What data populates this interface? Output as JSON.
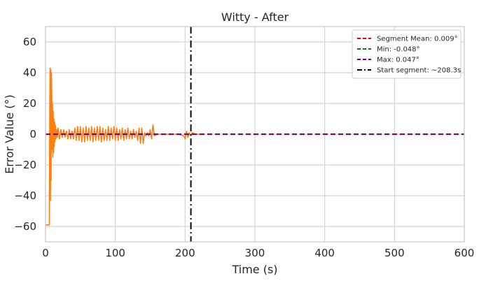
{
  "chart_data": {
    "type": "line",
    "title": "Witty - After",
    "xlabel": "Time (s)",
    "ylabel": "Error Value (°)",
    "xlim": [
      0,
      600
    ],
    "ylim": [
      -70,
      70
    ],
    "xticks": [
      0,
      100,
      200,
      300,
      400,
      500,
      600
    ],
    "yticks": [
      -60,
      -40,
      -20,
      0,
      20,
      40,
      60
    ],
    "grid": true,
    "legend_position": "top-right",
    "series": [
      {
        "color": "#ff7f0e",
        "x": [
          0,
          5,
          5.5,
          6,
          6.5,
          7,
          7.5,
          8,
          8.5,
          9,
          9.5,
          10,
          10.5,
          11,
          11.5,
          12,
          12.5,
          13,
          13.5,
          14,
          14.5,
          15,
          16,
          17,
          18,
          20,
          22,
          24,
          26,
          28,
          30,
          32,
          34,
          36,
          38,
          40,
          42,
          44,
          46,
          48,
          50,
          52,
          54,
          56,
          58,
          60,
          62,
          64,
          66,
          68,
          70,
          72,
          74,
          76,
          78,
          80,
          82,
          84,
          86,
          88,
          90,
          92,
          94,
          96,
          98,
          100,
          102,
          104,
          106,
          108,
          110,
          112,
          114,
          116,
          118,
          120,
          122,
          124,
          126,
          128,
          130,
          132,
          134,
          136,
          138,
          140,
          142,
          144,
          146,
          148,
          150,
          152,
          154,
          156,
          160,
          170,
          180,
          190,
          198,
          200,
          202,
          204,
          206,
          208,
          210,
          215,
          220,
          225
        ],
        "y": [
          -59,
          -59,
          -59,
          5,
          43,
          -43,
          42,
          -30,
          40,
          25,
          -10,
          20,
          -15,
          15,
          -12,
          10,
          -8,
          8,
          -5,
          6,
          4,
          -3,
          3,
          -2,
          4,
          -3,
          3,
          -2,
          3,
          -2,
          2,
          -3,
          3,
          -3,
          2,
          -3,
          4,
          -4,
          5,
          -4,
          5,
          -5,
          4,
          -5,
          5,
          -4,
          4,
          -4,
          5,
          -5,
          4,
          -4,
          5,
          -4,
          5,
          -5,
          4,
          -4,
          3,
          -4,
          5,
          -4,
          4,
          -3,
          5,
          -4,
          4,
          -4,
          3,
          -3,
          4,
          -4,
          3,
          -3,
          4,
          -3,
          2,
          -3,
          3,
          -2,
          2,
          -4,
          4,
          -6,
          4,
          -6,
          1,
          -1,
          1,
          -1,
          3,
          -3,
          6,
          -1,
          0,
          0,
          0,
          0,
          -1,
          -3,
          2,
          -2,
          1,
          -1,
          1,
          0,
          0,
          0
        ]
      }
    ],
    "reference_lines": [
      {
        "orientation": "horizontal",
        "value": 0.009,
        "color": "#e8000b",
        "dash": "dashed",
        "label": "Segment Mean: 0.009°"
      },
      {
        "orientation": "horizontal",
        "value": -0.048,
        "color": "#008000",
        "dash": "dashed",
        "label": "Min: -0.048°"
      },
      {
        "orientation": "horizontal",
        "value": 0.047,
        "color": "#800080",
        "dash": "dashed",
        "label": "Max: 0.047°"
      },
      {
        "orientation": "vertical",
        "value": 208.3,
        "color": "#000000",
        "dash": "dashdot",
        "label": "Start segment: ~208.3s"
      }
    ]
  }
}
